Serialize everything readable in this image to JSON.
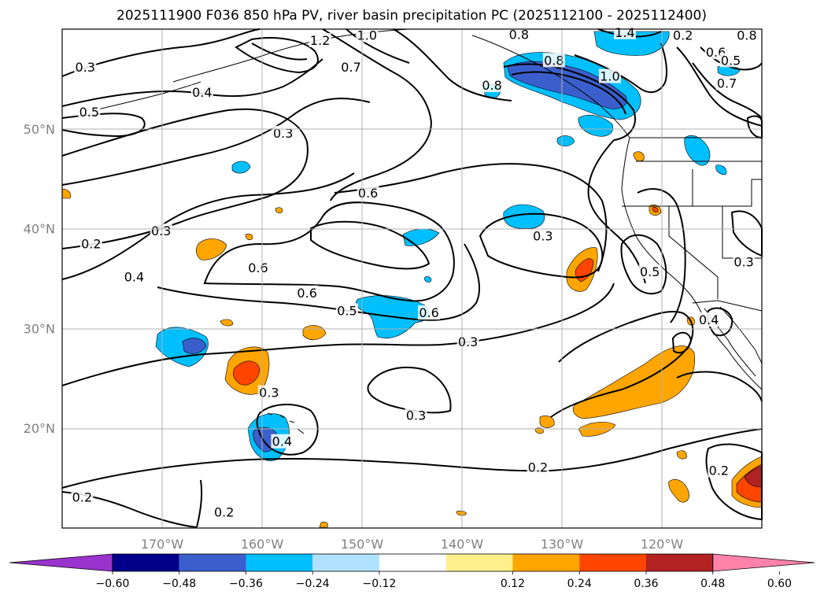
{
  "title": "2025111900 F036 850 hPa PV, river basin precipitation PC (2025112100 - 2025112400)",
  "latitude_labels": [
    {
      "label": "50°N",
      "lat": 50
    },
    {
      "label": "40°N",
      "lat": 40
    },
    {
      "label": "30°N",
      "lat": 30
    },
    {
      "label": "20°N",
      "lat": 20
    }
  ],
  "longitude_labels": [
    {
      "label": "170°W",
      "lon": -170
    },
    {
      "label": "160°W",
      "lon": -160
    },
    {
      "label": "150°W",
      "lon": -150
    },
    {
      "label": "140°W",
      "lon": -140
    },
    {
      "label": "130°W",
      "lon": -130
    },
    {
      "label": "120°W",
      "lon": -120
    }
  ],
  "extent": {
    "lon_min": -180,
    "lon_max": -110,
    "lat_min": 10,
    "lat_max": 60
  },
  "colorbar": {
    "ticks": [
      "−0.60",
      "−0.48",
      "−0.36",
      "−0.24",
      "−0.12",
      "0.12",
      "0.24",
      "0.36",
      "0.48",
      "0.60"
    ],
    "colors": [
      "#9a32cd",
      "#00008b",
      "#3a5fcd",
      "#00bfff",
      "#b0e2ff",
      "#ffffff",
      "#fff08c",
      "#ffa500",
      "#ff4500",
      "#b22222",
      "#ff82ab"
    ]
  },
  "contour_labels": [
    {
      "t": "0.3",
      "lon": -177.7,
      "lat": 56.2
    },
    {
      "t": "0.5",
      "lon": -177.3,
      "lat": 51.7
    },
    {
      "t": "0.4",
      "lon": -166,
      "lat": 53.7
    },
    {
      "t": "1.2",
      "lon": -154.2,
      "lat": 58.9
    },
    {
      "t": "1.0",
      "lon": -149.5,
      "lat": 59.4
    },
    {
      "t": "0.7",
      "lon": -151.1,
      "lat": 56.2
    },
    {
      "t": "0.8",
      "lon": -134.3,
      "lat": 59.5
    },
    {
      "t": "0.8",
      "lon": -137,
      "lat": 54.4
    },
    {
      "t": "0.3",
      "lon": -157.9,
      "lat": 49.6
    },
    {
      "t": "0.6",
      "lon": -149.4,
      "lat": 43.6
    },
    {
      "t": "0.3",
      "lon": -170.1,
      "lat": 39.8
    },
    {
      "t": "0.2",
      "lon": -177.1,
      "lat": 38.5
    },
    {
      "t": "0.4",
      "lon": -172.8,
      "lat": 35.2
    },
    {
      "t": "0.6",
      "lon": -160.4,
      "lat": 36.1
    },
    {
      "t": "0.6",
      "lon": -155.5,
      "lat": 33.6
    },
    {
      "t": "0.5",
      "lon": -151.5,
      "lat": 31.8
    },
    {
      "t": "0.6",
      "lon": -143.3,
      "lat": 31.6
    },
    {
      "t": "0.3",
      "lon": -139.4,
      "lat": 28.7
    },
    {
      "t": "0.3",
      "lon": -159.3,
      "lat": 23.6
    },
    {
      "t": "0.4",
      "lon": -158,
      "lat": 18.7
    },
    {
      "t": "0.3",
      "lon": -144.6,
      "lat": 21.3
    },
    {
      "t": "0.3",
      "lon": -131.9,
      "lat": 39.3
    },
    {
      "t": "0.8",
      "lon": -130.8,
      "lat": 56.9
    },
    {
      "t": "1.0",
      "lon": -125.2,
      "lat": 55.3
    },
    {
      "t": "1.4",
      "lon": -123.7,
      "lat": 59.7
    },
    {
      "t": "0.2",
      "lon": -117.9,
      "lat": 59.4
    },
    {
      "t": "0.6",
      "lon": -114.6,
      "lat": 57.7
    },
    {
      "t": "0.5",
      "lon": -113.1,
      "lat": 56.9
    },
    {
      "t": "0.7",
      "lon": -113.5,
      "lat": 54.6
    },
    {
      "t": "0.8",
      "lon": -111.5,
      "lat": 59.4
    },
    {
      "t": "0.5",
      "lon": -121.2,
      "lat": 35.7
    },
    {
      "t": "0.3",
      "lon": -111.8,
      "lat": 36.7
    },
    {
      "t": "0.4",
      "lon": -115.3,
      "lat": 30.9
    },
    {
      "t": "0.2",
      "lon": -132.4,
      "lat": 16.1
    },
    {
      "t": "0.2",
      "lon": -114.3,
      "lat": 15.8
    },
    {
      "t": "0.2",
      "lon": -178,
      "lat": 13.1
    },
    {
      "t": "0.2",
      "lon": -163.8,
      "lat": 11.6
    }
  ]
}
